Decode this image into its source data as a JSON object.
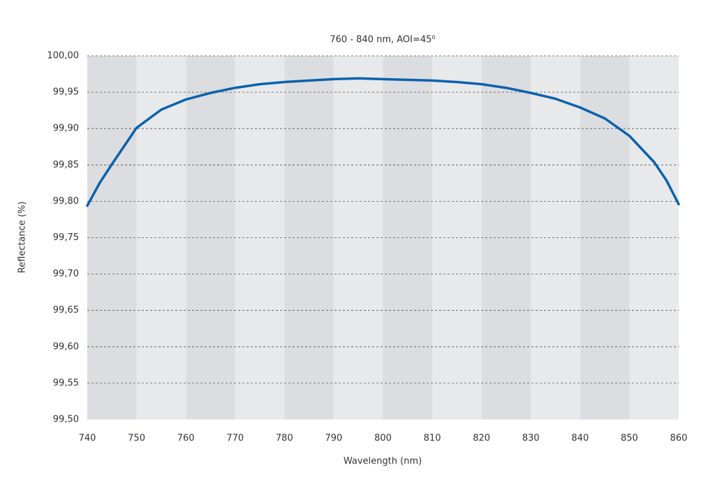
{
  "chart_data": {
    "type": "line",
    "title": "760 - 840 nm, AOI=45⁰",
    "x_label": "Wavelength (nm)",
    "y_label": "Reflectance (%)",
    "x": [
      740,
      742.5,
      745,
      750,
      755,
      760,
      765,
      770,
      775,
      780,
      785,
      790,
      795,
      800,
      805,
      810,
      815,
      820,
      825,
      830,
      835,
      840,
      845,
      850,
      855,
      857.5,
      860
    ],
    "series": [
      {
        "color": "#0a62ad",
        "values": [
          99.794,
          99.825,
          99.851,
          99.901,
          99.926,
          99.94,
          99.949,
          99.956,
          99.961,
          99.964,
          99.966,
          99.968,
          99.969,
          99.968,
          99.967,
          99.966,
          99.964,
          99.961,
          99.956,
          99.949,
          99.941,
          99.929,
          99.914,
          99.89,
          99.854,
          99.829,
          99.796
        ]
      }
    ],
    "xlim": [
      740,
      860
    ],
    "xticks": [
      740,
      750,
      760,
      770,
      780,
      790,
      800,
      810,
      820,
      830,
      840,
      850,
      860
    ],
    "ylim": [
      99.5,
      100
    ],
    "yticks": [
      {
        "value": 99.5,
        "label": "99,50"
      },
      {
        "value": 99.55,
        "label": "99,55"
      },
      {
        "value": 99.6,
        "label": "99,60"
      },
      {
        "value": 99.65,
        "label": "99,65"
      },
      {
        "value": 99.7,
        "label": "99,70"
      },
      {
        "value": 99.75,
        "label": "99,75"
      },
      {
        "value": 99.8,
        "label": "99,80"
      },
      {
        "value": 99.85,
        "label": "99,85"
      },
      {
        "value": 99.9,
        "label": "99,90"
      },
      {
        "value": 99.95,
        "label": "99,95"
      },
      {
        "value": 100,
        "label": "100,00"
      }
    ],
    "grid": true
  }
}
